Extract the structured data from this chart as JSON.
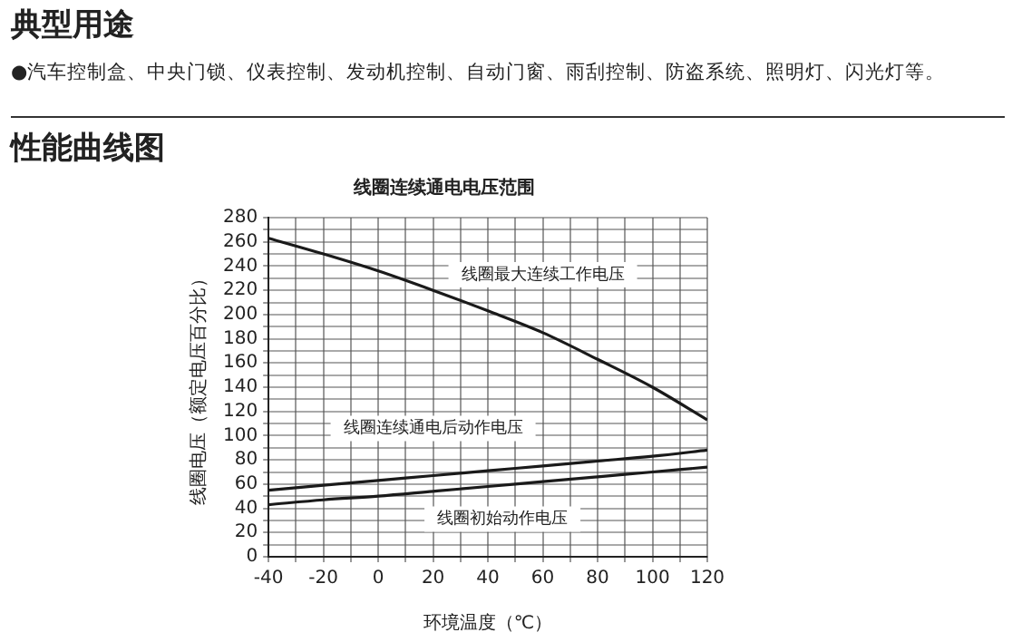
{
  "chart_data": {
    "type": "line",
    "title": "线圈连续通电电压范围",
    "xlabel": "环境温度（℃）",
    "ylabel": "线圈电压（额定电压百分比）",
    "x": [
      -40,
      -20,
      0,
      20,
      40,
      60,
      80,
      100,
      120
    ],
    "series": [
      {
        "name": "线圈最大连续工作电压",
        "color": "#1a1a1a",
        "values": [
          263,
          250,
          236,
          220,
          203,
          185,
          163,
          140,
          113
        ]
      },
      {
        "name": "线圈连续通电后动作电压",
        "color": "#1a1a1a",
        "values": [
          55,
          59,
          63,
          67,
          71,
          75,
          79,
          83,
          88
        ]
      },
      {
        "name": "线圈初始动作电压",
        "color": "#1a1a1a",
        "values": [
          43,
          47,
          50,
          54,
          58,
          62,
          66,
          70,
          74
        ]
      }
    ],
    "xlim": [
      -40,
      120
    ],
    "xticks": [
      -40,
      {
        "value": -30,
        "label": null
      },
      -20,
      {
        "value": -10,
        "label": null
      },
      0,
      {
        "value": 10,
        "label": null
      },
      20,
      {
        "value": 30,
        "label": null
      },
      40,
      {
        "value": 50,
        "label": null
      },
      60,
      {
        "value": 70,
        "label": null
      },
      80,
      {
        "value": 90,
        "label": null
      },
      100,
      {
        "value": 110,
        "label": null
      },
      120
    ],
    "ylim": [
      0,
      280
    ],
    "yticks": [
      0,
      {
        "value": 10,
        "label": null
      },
      20,
      {
        "value": 30,
        "label": null
      },
      40,
      {
        "value": 50,
        "label": null
      },
      60,
      {
        "value": 70,
        "label": null
      },
      80,
      {
        "value": 90,
        "label": null
      },
      100,
      {
        "value": 110,
        "label": null
      },
      120,
      {
        "value": 130,
        "label": null
      },
      140,
      {
        "value": 150,
        "label": null
      },
      160,
      {
        "value": 170,
        "label": null
      },
      180,
      {
        "value": 190,
        "label": null
      },
      200,
      {
        "value": 210,
        "label": null
      },
      220,
      {
        "value": 230,
        "label": null
      },
      240,
      {
        "value": 250,
        "label": null
      },
      260,
      {
        "value": 270,
        "label": null
      },
      280
    ],
    "grid": true,
    "marker": "none",
    "line_style": "solid",
    "legend": false,
    "annotations": [
      "典型用途",
      "●汽车控制盒、中央门锁、仪表控制、发动机控制、自动门窗、雨刮控制、防盗系统、照明灯、闪光灯等。",
      "性能曲线图"
    ]
  }
}
